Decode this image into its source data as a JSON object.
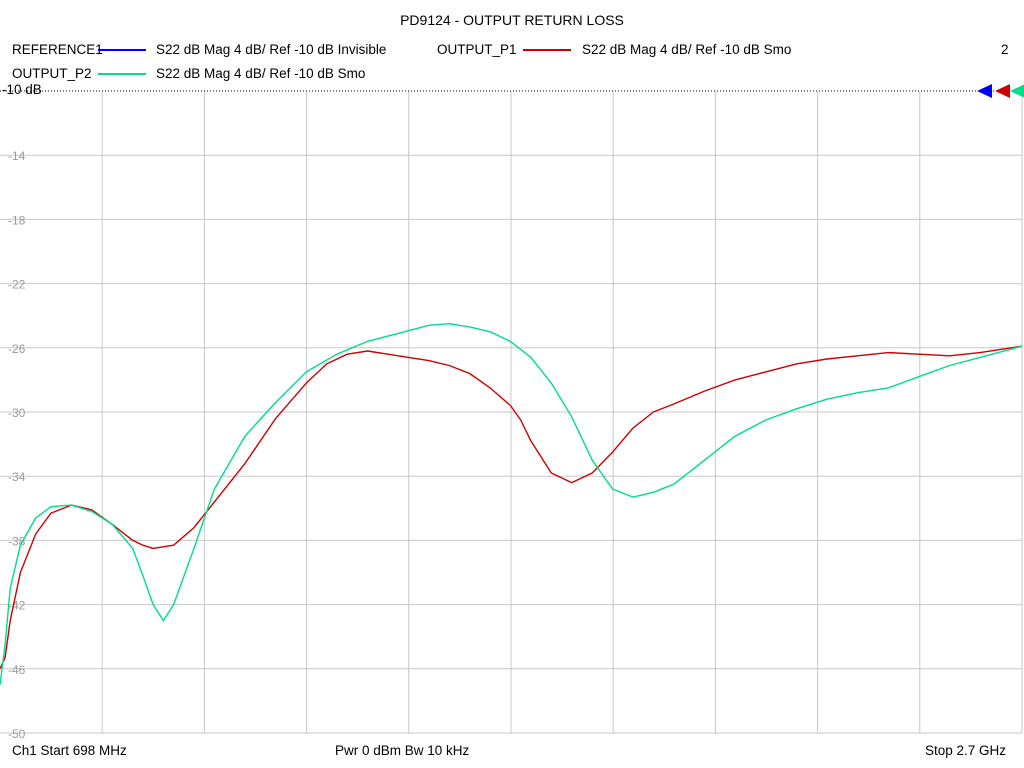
{
  "title": "PD9124 - OUTPUT RETURN LOSS",
  "page_number": "2",
  "legend": [
    {
      "name": "REFERENCE1",
      "desc": "S22  dB Mag  4 dB/ Ref -10 dB  Invisible",
      "color": "#0000ff"
    },
    {
      "name": "OUTPUT_P1",
      "desc": "S22  dB Mag  4 dB/ Ref -10 dB  Smo",
      "color": "#cc0000"
    },
    {
      "name": "OUTPUT_P2",
      "desc": "S22  dB Mag  4 dB/ Ref -10 dB  Smo",
      "color": "#00dd88"
    }
  ],
  "ref_label": "-10 dB",
  "footer": {
    "start": "Ch1  Start  698 MHz",
    "power": "Pwr  0 dBm  Bw  10 kHz",
    "stop": "Stop  2.7 GHz"
  },
  "chart_data": {
    "type": "line",
    "title": "PD9124 - OUTPUT RETURN LOSS",
    "xlabel": "",
    "ylabel": "",
    "xlim": [
      698,
      2700
    ],
    "ylim": [
      -50,
      -10
    ],
    "x_unit": "MHz",
    "y_ticks": [
      -10,
      -14,
      -18,
      -22,
      -26,
      -30,
      -34,
      -38,
      -42,
      -46,
      -50
    ],
    "y_tick_labels": [
      "-10",
      "-14",
      "-18",
      "-22",
      "-26",
      "-30",
      "-34",
      "-38",
      "-42",
      "-46",
      "-50"
    ],
    "grid": true,
    "x_divisions": 10,
    "series": [
      {
        "name": "OUTPUT_P1",
        "color": "#cc0000",
        "x": [
          698,
          708,
          718,
          738,
          768,
          798,
          838,
          878,
          918,
          958,
          978,
          998,
          1038,
          1078,
          1118,
          1178,
          1238,
          1298,
          1338,
          1378,
          1418,
          1478,
          1538,
          1578,
          1618,
          1658,
          1698,
          1718,
          1738,
          1778,
          1818,
          1858,
          1898,
          1938,
          1978,
          2018,
          2078,
          2138,
          2198,
          2258,
          2318,
          2378,
          2438,
          2498,
          2558,
          2618,
          2700
        ],
        "y": [
          -46.0,
          -45.3,
          -43.0,
          -40.0,
          -37.6,
          -36.3,
          -35.8,
          -36.1,
          -37.0,
          -38.0,
          -38.3,
          -38.5,
          -38.3,
          -37.2,
          -35.6,
          -33.2,
          -30.4,
          -28.2,
          -27.0,
          -26.4,
          -26.2,
          -26.5,
          -26.8,
          -27.1,
          -27.6,
          -28.5,
          -29.6,
          -30.5,
          -31.8,
          -33.8,
          -34.4,
          -33.8,
          -32.5,
          -31.0,
          -30.0,
          -29.5,
          -28.7,
          -28.0,
          -27.5,
          -27.0,
          -26.7,
          -26.5,
          -26.3,
          -26.4,
          -26.5,
          -26.3,
          -25.9
        ]
      },
      {
        "name": "OUTPUT_P2",
        "color": "#00dd88",
        "x": [
          698,
          708,
          718,
          738,
          768,
          798,
          838,
          878,
          918,
          958,
          978,
          998,
          1018,
          1038,
          1078,
          1118,
          1178,
          1238,
          1298,
          1358,
          1418,
          1478,
          1538,
          1578,
          1618,
          1658,
          1698,
          1738,
          1778,
          1818,
          1858,
          1898,
          1938,
          1978,
          2018,
          2078,
          2138,
          2198,
          2258,
          2318,
          2378,
          2438,
          2498,
          2558,
          2618,
          2700
        ],
        "y": [
          -47.0,
          -44.5,
          -41.0,
          -38.3,
          -36.6,
          -35.9,
          -35.8,
          -36.2,
          -37.0,
          -38.5,
          -40.2,
          -42.0,
          -43.0,
          -42.0,
          -38.5,
          -34.8,
          -31.5,
          -29.4,
          -27.5,
          -26.4,
          -25.6,
          -25.1,
          -24.6,
          -24.5,
          -24.7,
          -25.0,
          -25.6,
          -26.6,
          -28.2,
          -30.3,
          -33.0,
          -34.8,
          -35.3,
          -35.0,
          -34.5,
          -33.0,
          -31.5,
          -30.5,
          -29.8,
          -29.2,
          -28.8,
          -28.5,
          -27.8,
          -27.1,
          -26.6,
          -25.9
        ]
      }
    ]
  }
}
